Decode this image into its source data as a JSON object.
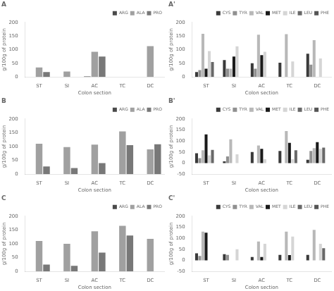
{
  "chart_data": [
    {
      "type": "bar",
      "title": "A",
      "xlabel": "Colon section",
      "ylabel": "g/100g of protein",
      "categories": [
        "ST",
        "SI",
        "AC",
        "TC",
        "DC"
      ],
      "series": [
        {
          "name": "ARG",
          "color": "#4a4a4a",
          "values": [
            0,
            0,
            2,
            0,
            0
          ]
        },
        {
          "name": "ALA",
          "color": "#a0a0a0",
          "values": [
            35,
            20,
            92,
            0,
            113
          ]
        },
        {
          "name": "PRO",
          "color": "#787878",
          "values": [
            18,
            0,
            75,
            0,
            0
          ]
        }
      ],
      "ylim": [
        0,
        200
      ],
      "yticks": [
        0,
        50,
        100,
        150,
        200
      ],
      "grid": false,
      "legend": "upper right"
    },
    {
      "type": "bar",
      "title": "A'",
      "xlabel": "Colon section",
      "ylabel": "g/100g of protein",
      "categories": [
        "ST",
        "SI",
        "AC",
        "TC",
        "DC"
      ],
      "series": [
        {
          "name": "CYS",
          "color": "#3a3a3a",
          "values": [
            18,
            62,
            50,
            52,
            85
          ]
        },
        {
          "name": "TYR",
          "color": "#909090",
          "values": [
            25,
            30,
            30,
            0,
            45
          ]
        },
        {
          "name": "VAL",
          "color": "#b8b8b8",
          "values": [
            158,
            30,
            155,
            157,
            135
          ]
        },
        {
          "name": "MET",
          "color": "#1a1a1a",
          "values": [
            30,
            75,
            80,
            0,
            0
          ]
        },
        {
          "name": "ILE",
          "color": "#d5d5d5",
          "values": [
            95,
            112,
            92,
            57,
            68
          ]
        },
        {
          "name": "LEU",
          "color": "#686868",
          "values": [
            55,
            0,
            0,
            0,
            0
          ]
        },
        {
          "name": "PHE",
          "color": "#555555",
          "values": [
            0,
            0,
            0,
            0,
            0
          ]
        }
      ],
      "ylim": [
        0,
        200
      ],
      "yticks": [
        0,
        50,
        100,
        150,
        200
      ],
      "grid": false,
      "legend": "upper right"
    },
    {
      "type": "bar",
      "title": "B",
      "xlabel": "Colon section",
      "ylabel": "g/100g of protein",
      "categories": [
        "ST",
        "SI",
        "AC",
        "TC",
        "DC"
      ],
      "series": [
        {
          "name": "ARG",
          "color": "#4a4a4a",
          "values": [
            0,
            0,
            0,
            0,
            0
          ]
        },
        {
          "name": "ALA",
          "color": "#a0a0a0",
          "values": [
            110,
            98,
            107,
            155,
            90
          ]
        },
        {
          "name": "PRO",
          "color": "#787878",
          "values": [
            28,
            22,
            40,
            105,
            108
          ]
        }
      ],
      "ylim": [
        0,
        200
      ],
      "yticks": [
        0,
        50,
        100,
        150,
        200
      ],
      "grid": false,
      "legend": "upper right"
    },
    {
      "type": "bar",
      "title": "B'",
      "xlabel": "Colon section",
      "ylabel": "g/100g of protein",
      "categories": [
        "ST",
        "SI",
        "AC",
        "TC",
        "DC"
      ],
      "series": [
        {
          "name": "CYS",
          "color": "#3a3a3a",
          "values": [
            45,
            8,
            50,
            55,
            15
          ]
        },
        {
          "name": "TYR",
          "color": "#909090",
          "values": [
            22,
            30,
            0,
            0,
            55
          ]
        },
        {
          "name": "VAL",
          "color": "#b8b8b8",
          "values": [
            58,
            108,
            80,
            145,
            68
          ]
        },
        {
          "name": "MET",
          "color": "#1a1a1a",
          "values": [
            130,
            0,
            65,
            92,
            95
          ]
        },
        {
          "name": "ILE",
          "color": "#d5d5d5",
          "values": [
            35,
            40,
            18,
            18,
            65
          ]
        },
        {
          "name": "LEU",
          "color": "#686868",
          "values": [
            60,
            0,
            0,
            58,
            70
          ]
        },
        {
          "name": "PHE",
          "color": "#555555",
          "values": [
            0,
            0,
            0,
            0,
            0
          ]
        }
      ],
      "ylim": [
        -50,
        200
      ],
      "yticks": [
        -50,
        0,
        50,
        100,
        150,
        200
      ],
      "grid": false,
      "legend": "upper right"
    },
    {
      "type": "bar",
      "title": "C",
      "xlabel": "Colon section",
      "ylabel": "g/100g of protein",
      "categories": [
        "ST",
        "SI",
        "AC",
        "TC",
        "DC"
      ],
      "series": [
        {
          "name": "ARG",
          "color": "#4a4a4a",
          "values": [
            0,
            0,
            0,
            0,
            0
          ]
        },
        {
          "name": "ALA",
          "color": "#a0a0a0",
          "values": [
            110,
            100,
            145,
            165,
            118
          ]
        },
        {
          "name": "PRO",
          "color": "#787878",
          "values": [
            25,
            20,
            68,
            130,
            0
          ]
        }
      ],
      "ylim": [
        0,
        200
      ],
      "yticks": [
        0,
        50,
        100,
        150,
        200
      ],
      "grid": false,
      "legend": "upper right"
    },
    {
      "type": "bar",
      "title": "C'",
      "xlabel": "Colon section",
      "ylabel": "g/100g of protein",
      "categories": [
        "ST",
        "SI",
        "AC",
        "TC",
        "DC"
      ],
      "series": [
        {
          "name": "CYS",
          "color": "#3a3a3a",
          "values": [
            32,
            28,
            15,
            25,
            25
          ]
        },
        {
          "name": "TYR",
          "color": "#909090",
          "values": [
            20,
            25,
            0,
            0,
            0
          ]
        },
        {
          "name": "VAL",
          "color": "#b8b8b8",
          "values": [
            130,
            0,
            85,
            130,
            138
          ]
        },
        {
          "name": "MET",
          "color": "#1a1a1a",
          "values": [
            125,
            0,
            15,
            24,
            0
          ]
        },
        {
          "name": "ILE",
          "color": "#d5d5d5",
          "values": [
            0,
            50,
            75,
            108,
            75
          ]
        },
        {
          "name": "LEU",
          "color": "#686868",
          "values": [
            0,
            0,
            0,
            0,
            55
          ]
        },
        {
          "name": "PHE",
          "color": "#555555",
          "values": [
            0,
            0,
            0,
            0,
            0
          ]
        }
      ],
      "ylim": [
        -50,
        200
      ],
      "yticks": [
        -50,
        0,
        50,
        100,
        150,
        200
      ],
      "grid": false,
      "legend": "upper right"
    }
  ]
}
